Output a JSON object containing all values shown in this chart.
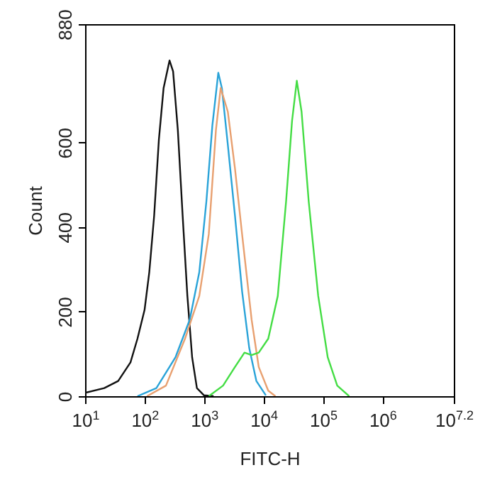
{
  "chart_data": {
    "type": "line",
    "xlabel": "FITC-H",
    "ylabel": "Count",
    "log": "x",
    "grid": false,
    "marker": "none",
    "line_style": "solid",
    "xlim": [
      10,
      15848932
    ],
    "ylim": [
      0,
      880
    ],
    "xticks": [
      {
        "value": 10,
        "label": "10$^{1}$"
      },
      {
        "value": 100,
        "label": "10$^{2}$"
      },
      {
        "value": 1000,
        "label": "10$^{3}$"
      },
      {
        "value": 10000,
        "label": "10$^{4}$"
      },
      {
        "value": 100000,
        "label": "10$^{5}$"
      },
      {
        "value": 1000000,
        "label": "10$^{6}$"
      },
      {
        "value": 15848932,
        "label": "10$^{7.2}$"
      }
    ],
    "yticks": [
      0,
      200,
      400,
      600,
      880
    ],
    "series": [
      {
        "color": "#111111",
        "x": [
          10,
          21,
          36,
          58,
          76,
          100,
          120,
          145,
          174,
          209,
          263,
          302,
          363,
          437,
          525,
          631,
          759,
          1000,
          1445
        ],
        "values": [
          8,
          19,
          36,
          80,
          136,
          204,
          293,
          427,
          606,
          729,
          794,
          768,
          629,
          427,
          237,
          92,
          19,
          2,
          0
        ]
      },
      {
        "color": "#2aa3d8",
        "x": [
          76,
          158,
          331,
          575,
          832,
          1096,
          1380,
          1738,
          1995,
          2512,
          3311,
          4365,
          5754,
          7586,
          10965
        ],
        "values": [
          0,
          19,
          92,
          181,
          293,
          461,
          640,
          765,
          729,
          595,
          427,
          248,
          114,
          36,
          2
        ]
      },
      {
        "color": "#e8a070",
        "x": [
          110,
          229,
          479,
          832,
          1202,
          1585,
          1905,
          2512,
          3311,
          4365,
          6310,
          8318,
          12023,
          15849
        ],
        "values": [
          0,
          25,
          136,
          237,
          383,
          629,
          729,
          673,
          539,
          383,
          181,
          69,
          13,
          0
        ]
      },
      {
        "color": "#44dd44",
        "x": [
          1202,
          2089,
          3311,
          4786,
          6310,
          8318,
          12023,
          17378,
          23988,
          30200,
          36308,
          43652,
          57544,
          83176,
          120226,
          173780,
          275423
        ],
        "values": [
          0,
          25,
          69,
          103,
          97,
          103,
          136,
          237,
          461,
          651,
          746,
          673,
          461,
          237,
          92,
          25,
          0
        ]
      }
    ]
  }
}
